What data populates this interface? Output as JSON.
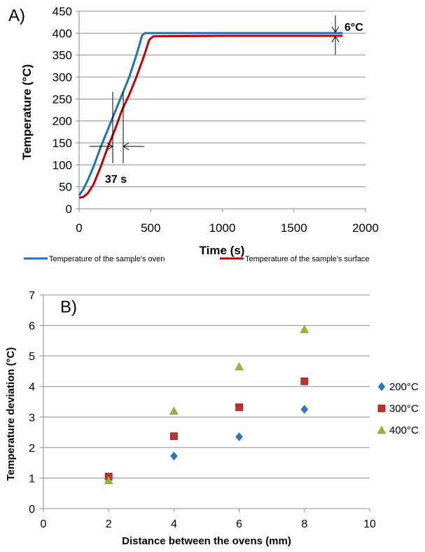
{
  "chart_data": [
    {
      "type": "line",
      "panel_label": "A)",
      "xlabel": "Time (s)",
      "ylabel": "Temperature (°C)",
      "xlim": [
        0,
        2000
      ],
      "ylim": [
        0,
        450
      ],
      "x_ticks": [
        "0",
        "500",
        "1000",
        "1500",
        "2000"
      ],
      "y_ticks": [
        "0",
        "50",
        "100",
        "150",
        "200",
        "250",
        "300",
        "350",
        "400",
        "450"
      ],
      "grid": "horizontal",
      "legend_position": "bottom",
      "annotations": [
        "6°C",
        "37 s"
      ],
      "series": [
        {
          "name": "Temperature of the sample's oven",
          "color": "#1f6fc1",
          "points": [
            [
              0,
              30
            ],
            [
              30,
              45
            ],
            [
              60,
              65
            ],
            [
              100,
              95
            ],
            [
              150,
              140
            ],
            [
              200,
              180
            ],
            [
              250,
              220
            ],
            [
              300,
              260
            ],
            [
              350,
              300
            ],
            [
              400,
              350
            ],
            [
              440,
              395
            ],
            [
              460,
              400
            ],
            [
              1000,
              400
            ],
            [
              1840,
              400
            ]
          ]
        },
        {
          "name": "Temperature of the sample's surface",
          "color": "#c00000",
          "points": [
            [
              0,
              25
            ],
            [
              30,
              27
            ],
            [
              60,
              35
            ],
            [
              100,
              55
            ],
            [
              150,
              95
            ],
            [
              200,
              140
            ],
            [
              250,
              180
            ],
            [
              300,
              225
            ],
            [
              350,
              260
            ],
            [
              400,
              300
            ],
            [
              450,
              345
            ],
            [
              490,
              385
            ],
            [
              520,
              393
            ],
            [
              1000,
              394
            ],
            [
              1840,
              394
            ]
          ]
        }
      ]
    },
    {
      "type": "scatter",
      "panel_label": "B)",
      "xlabel": "Distance between the ovens (mm)",
      "ylabel": "Temperature deviation (°C)",
      "xlim": [
        0,
        10
      ],
      "ylim": [
        0,
        7
      ],
      "x_ticks": [
        "0",
        "2",
        "4",
        "6",
        "8",
        "10"
      ],
      "y_ticks": [
        "0",
        "1",
        "2",
        "3",
        "4",
        "5",
        "6",
        "7"
      ],
      "grid": "horizontal",
      "legend_position": "right",
      "x": [
        2,
        4,
        6,
        8
      ],
      "series": [
        {
          "name": "200°C",
          "marker": "diamond",
          "color": "#2e75c9",
          "values": [
            0.96,
            1.72,
            2.35,
            3.25
          ]
        },
        {
          "name": "300°C",
          "marker": "square",
          "color": "#c0302c",
          "values": [
            1.05,
            2.37,
            3.32,
            4.17
          ]
        },
        {
          "name": "400°C",
          "marker": "triangle",
          "color": "#8db83a",
          "values": [
            0.92,
            3.2,
            4.65,
            5.87
          ]
        }
      ]
    }
  ]
}
